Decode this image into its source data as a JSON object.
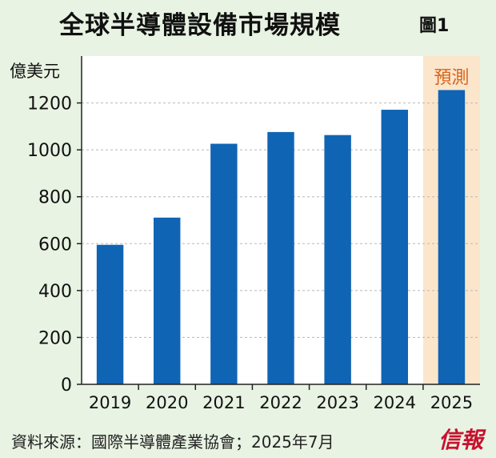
{
  "header": {
    "title": "全球半導體設備市場規模",
    "figure_label": "圖1"
  },
  "footer": {
    "source": "資料來源：國際半導體產業協會；2025年7月",
    "brand": "信報"
  },
  "colors": {
    "background": "#e8f3e3",
    "plot_background": "#ffffff",
    "bar": "#0f64b4",
    "forecast_band": "#fbe6cc",
    "forecast_text": "#d9621a"
  },
  "chart_data": {
    "type": "bar",
    "title": "全球半導體設備市場規模",
    "ylabel": "億美元",
    "xlabel": "",
    "categories": [
      "2019",
      "2020",
      "2021",
      "2022",
      "2023",
      "2024",
      "2025"
    ],
    "values": [
      595,
      711,
      1026,
      1076,
      1063,
      1171,
      1255
    ],
    "ylim": [
      0,
      1400
    ],
    "yticks": [
      0,
      200,
      400,
      600,
      800,
      1000,
      1200
    ],
    "grid": "horizontal-dashed",
    "forecast_category": "2025",
    "forecast_label": "預測"
  }
}
